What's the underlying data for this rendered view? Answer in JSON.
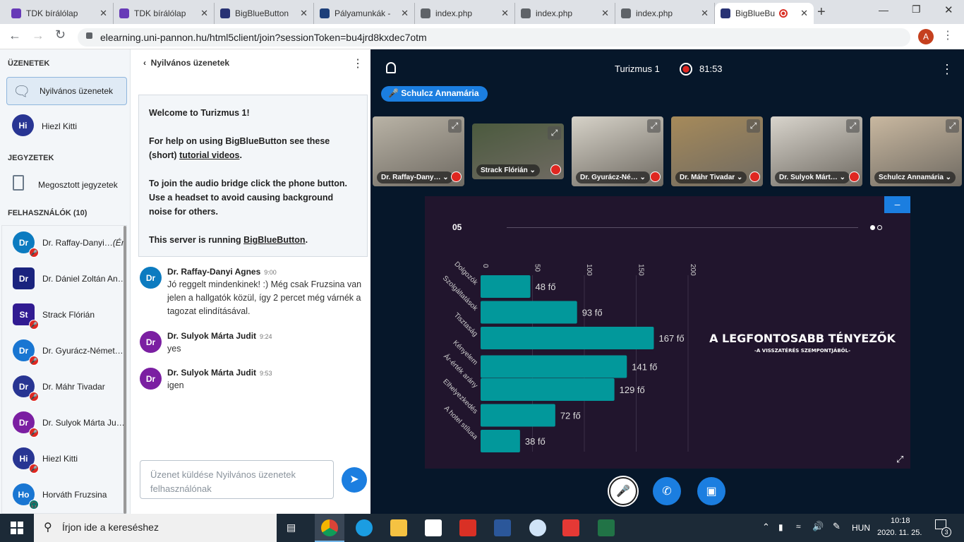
{
  "browser": {
    "tabs": [
      {
        "title": "TDK bírálólap",
        "icon": "forms-icon",
        "color": "#673ab7"
      },
      {
        "title": "TDK bírálólap",
        "icon": "forms-icon",
        "color": "#673ab7"
      },
      {
        "title": "BigBlueButton",
        "icon": "bbb-icon",
        "color": "#283274"
      },
      {
        "title": "Pályamunkák -",
        "icon": "crest-icon",
        "color": "#1d3f7a"
      },
      {
        "title": "index.php",
        "icon": "globe-icon",
        "color": "#5f6368"
      },
      {
        "title": "index.php",
        "icon": "globe-icon",
        "color": "#5f6368"
      },
      {
        "title": "index.php",
        "icon": "globe-icon",
        "color": "#5f6368"
      },
      {
        "title": "BigBlueBu",
        "icon": "bbb-icon",
        "color": "#283274",
        "active": true
      }
    ],
    "url": "elearning.uni-pannon.hu/html5client/join?sessionToken=bu4jrd8kxdec7otm",
    "profile_initial": "A"
  },
  "sidebar": {
    "messages_heading": "ÜZENETEK",
    "public_chat": "Nyilvános üzenetek",
    "private_chat": {
      "initials": "Hi",
      "name": "Hiezl Kitti"
    },
    "notes_heading": "JEGYZETEK",
    "shared_notes": "Megosztott jegyzetek",
    "users_heading": "FELHASZNÁLÓK (10)",
    "users": [
      {
        "initials": "Dr",
        "name": "Dr. Raffay-Danyi…",
        "suffix": "(Én)",
        "color": "#0c7bc0",
        "status": "muted"
      },
      {
        "initials": "Dr",
        "name": "Dr. Dániel Zoltán An…",
        "color": "#1a237e",
        "status": "none"
      },
      {
        "initials": "St",
        "name": "Strack Flórián",
        "color": "#311b92",
        "status": "muted"
      },
      {
        "initials": "Dr",
        "name": "Dr. Gyurácz-Német…",
        "color": "#1976d2",
        "status": "muted"
      },
      {
        "initials": "Dr",
        "name": "Dr. Máhr Tivadar",
        "color": "#283593",
        "status": "muted"
      },
      {
        "initials": "Dr",
        "name": "Dr. Sulyok Márta Ju…",
        "color": "#7b1fa2",
        "status": "muted"
      },
      {
        "initials": "Hi",
        "name": "Hiezl Kitti",
        "color": "#283593",
        "status": "muted"
      },
      {
        "initials": "Ho",
        "name": "Horváth Fruzsina",
        "color": "#1976d2",
        "status": "listen"
      }
    ]
  },
  "chat": {
    "title": "Nyilvános üzenetek",
    "welcome": {
      "title": "Welcome to Turizmus 1!",
      "help_pre": "For help on using BigBlueButton see these (short) ",
      "help_link": "tutorial videos",
      "help_post": ".",
      "audio": "To join the audio bridge click the phone button. Use a headset to avoid causing background noise for others.",
      "server_pre": "This server is running ",
      "server_link": "BigBlueButton",
      "server_post": "."
    },
    "messages": [
      {
        "initials": "Dr",
        "name": "Dr. Raffay-Danyi Agnes",
        "time": "9:00",
        "text": "Jó reggelt mindenkinek! :) Még csak Fruzsina van jelen a hallgatók közül, így 2 percet még várnék a tagozat elindításával.",
        "color": "#0c7bc0"
      },
      {
        "initials": "Dr",
        "name": "Dr. Sulyok Márta Judit",
        "time": "9:24",
        "text": "yes",
        "color": "#7b1fa2"
      },
      {
        "initials": "Dr",
        "name": "Dr. Sulyok Márta Judit",
        "time": "9:53",
        "text": "igen",
        "color": "#7b1fa2"
      }
    ],
    "input_placeholder": "Üzenet küldése Nyilvános üzenetek felhasználónak"
  },
  "meeting": {
    "title": "Turizmus 1",
    "recording_time": "81:53",
    "talking": "Schulcz Annamária",
    "videos": [
      {
        "name": "Dr. Raffay-Dany…",
        "muted": true
      },
      {
        "name": "Strack Flórián",
        "muted": true
      },
      {
        "name": "Dr. Gyurácz-Né…",
        "muted": true
      },
      {
        "name": "Dr. Máhr Tivadar",
        "muted": true
      },
      {
        "name": "Dr. Sulyok Márt…",
        "muted": true
      },
      {
        "name": "Schulcz Annamária",
        "muted": false
      }
    ]
  },
  "slide": {
    "number": "05",
    "title": "A LEGFONTOSABB TÉNYEZŐK",
    "subtitle": "-A VISSZATÉRÉS SZEMPONTJÁBÓL-"
  },
  "chart_data": {
    "type": "bar",
    "orientation": "horizontal",
    "categories": [
      "Dolgozók",
      "Szolgáltatások",
      "Tisztaság",
      "Kényelem",
      "Ár-érték arány",
      "Elhelyezkedés",
      "A hotel stílusa"
    ],
    "values": [
      48,
      93,
      167,
      141,
      129,
      72,
      38
    ],
    "value_labels": [
      "48 fő",
      "93 fő",
      "167 fő",
      "141 fő",
      "129 fő",
      "72 fő",
      "38 fő"
    ],
    "xticks": [
      "0",
      "50",
      "100",
      "150",
      "200"
    ],
    "xlim": [
      0,
      200
    ],
    "color": "#02989b",
    "grid": true
  },
  "taskbar": {
    "search_placeholder": "Írjon ide a kereséshez",
    "language": "HUN",
    "time": "10:18",
    "date": "2020. 11. 25.",
    "notifications": "3"
  }
}
